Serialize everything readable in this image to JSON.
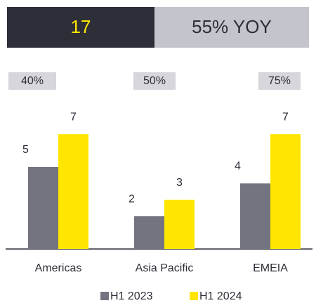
{
  "chart_data": {
    "type": "bar",
    "headline": "17",
    "headline_note": "55% YOY",
    "growth_labels": [
      "40%",
      "50%",
      "75%"
    ],
    "categories": [
      "Americas",
      "Asia Pacific",
      "EMEIA"
    ],
    "series": [
      {
        "name": "H1 2023",
        "color": "#747480",
        "values": [
          5,
          2,
          4
        ]
      },
      {
        "name": "H1 2024",
        "color": "#ffe600",
        "values": [
          7,
          3,
          7
        ]
      }
    ],
    "ylim": [
      0,
      10
    ]
  }
}
